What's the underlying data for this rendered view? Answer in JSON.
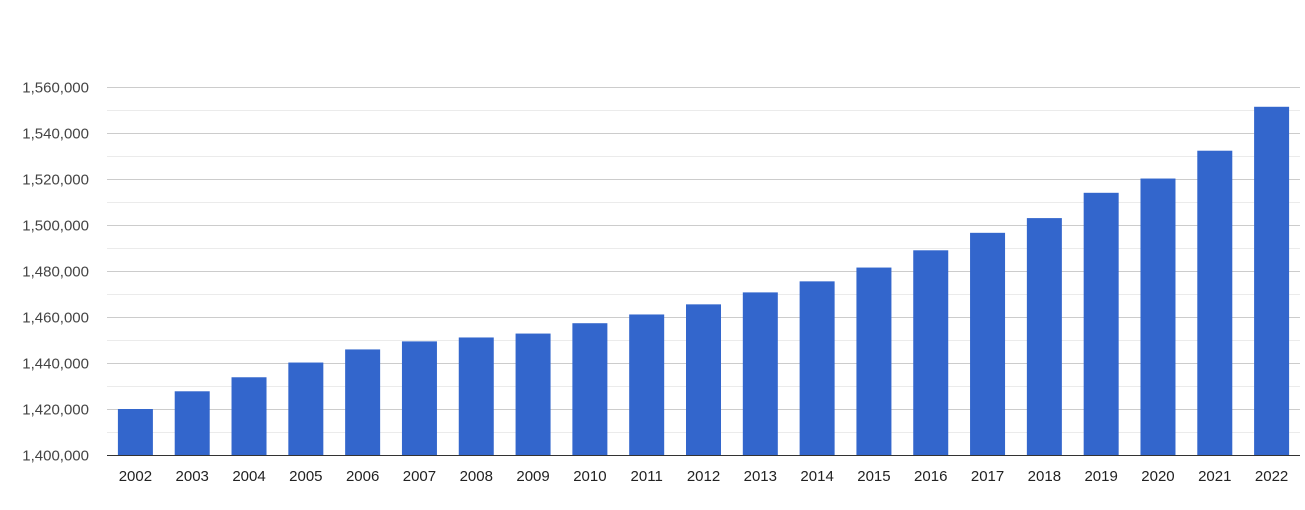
{
  "chart_data": {
    "type": "bar",
    "title": "",
    "xlabel": "",
    "ylabel": "",
    "categories": [
      "2002",
      "2003",
      "2004",
      "2005",
      "2006",
      "2007",
      "2008",
      "2009",
      "2010",
      "2011",
      "2012",
      "2013",
      "2014",
      "2015",
      "2016",
      "2017",
      "2018",
      "2019",
      "2020",
      "2021",
      "2022"
    ],
    "values": [
      1420000,
      1427700,
      1433800,
      1440200,
      1445900,
      1449400,
      1451100,
      1452800,
      1457300,
      1461100,
      1465500,
      1470700,
      1475500,
      1481500,
      1489000,
      1496600,
      1503000,
      1514000,
      1520200,
      1532300,
      1551400
    ],
    "ylim": [
      1400000,
      1560000
    ],
    "yticks": [
      1400000,
      1420000,
      1440000,
      1460000,
      1480000,
      1500000,
      1520000,
      1540000,
      1560000
    ],
    "ytick_labels": [
      "1,400,000",
      "1,420,000",
      "1,440,000",
      "1,460,000",
      "1,480,000",
      "1,500,000",
      "1,520,000",
      "1,540,000",
      "1,560,000"
    ],
    "grid": true,
    "minor_grid": true,
    "legend": "none",
    "bar_color": "#3366cc"
  }
}
